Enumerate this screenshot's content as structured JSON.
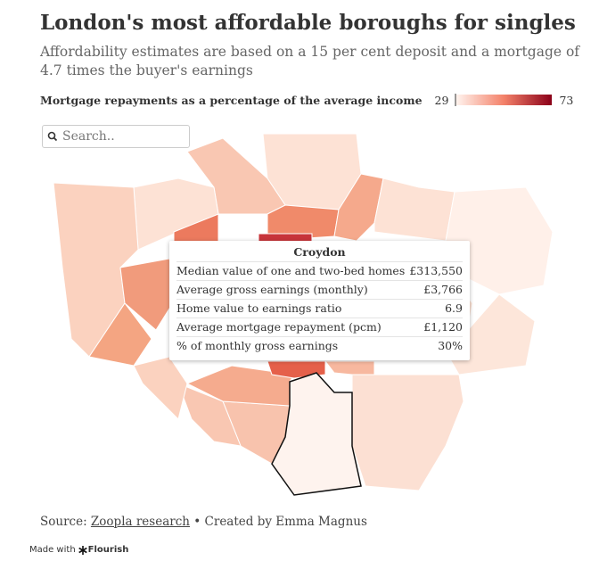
{
  "header": {
    "title": "London's most affordable boroughs for singles",
    "subtitle": "Affordability estimates are based on a 15 per cent deposit and a mortgage of 4.7 times the buyer's earnings"
  },
  "legend": {
    "title": "Mortgage repayments as a percentage of the average income",
    "min": 29,
    "max": 73
  },
  "search": {
    "placeholder": "Search.."
  },
  "tooltip": {
    "title": "Croydon",
    "rows": [
      [
        "Median value of one and two-bed homes",
        "£313,550"
      ],
      [
        "Average gross earnings (monthly)",
        "£3,766"
      ],
      [
        "Home value to earnings ratio",
        "6.9"
      ],
      [
        "Average mortgage repayment (pcm)",
        "£1,120"
      ],
      [
        "% of monthly gross earnings",
        "30%"
      ]
    ]
  },
  "footer": {
    "source_label": "Source:",
    "source_link": "Zoopla research",
    "credit": "• Created by Emma Magnus",
    "made_with": "Made with",
    "brand": "Flourish"
  }
}
